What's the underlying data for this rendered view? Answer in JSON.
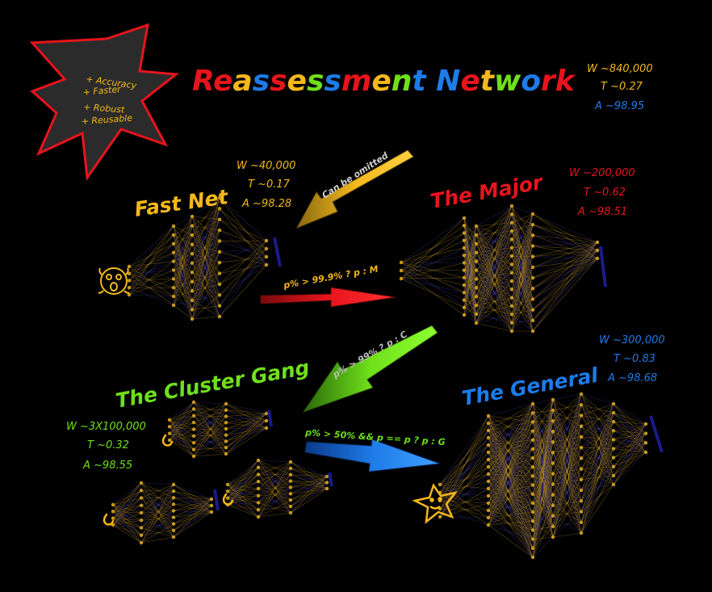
{
  "colors": {
    "background": "#000000",
    "yellow": "#f4b81c",
    "red": "#e8141c",
    "green": "#6fe01a",
    "blue": "#1e7be8",
    "network_node": "#c89a1a",
    "network_edge_a": "#d4a42a",
    "network_edge_b": "#4c42b0",
    "output_bar": "#1a1a8c",
    "star_fill": "#2b2b2b",
    "star_stroke": "#e8141c"
  },
  "title": {
    "text": "Reassessment Network",
    "letter_colors": [
      "#e8141c",
      "#e8141c",
      "#f4b81c",
      "#1e7be8",
      "#e8141c",
      "#f4b81c",
      "#6fe01a",
      "#1e7be8",
      "#e8141c",
      "#f4b81c",
      "#6fe01a",
      "#1e7be8",
      "#000000",
      "#1e7be8",
      "#e8141c",
      "#f4b81c",
      "#6fe01a",
      "#1e7be8",
      "#e8141c",
      "#e8141c"
    ]
  },
  "star_badge": {
    "items": [
      "+ Accuracy",
      "+ Faster",
      "+ Robust",
      "+ Reusable"
    ]
  },
  "overall_stats": {
    "w": "W ~840,000",
    "t": "T ~0.27",
    "a": "A ~98.95"
  },
  "fast_net": {
    "name": "Fast Net",
    "w": "W ~40,000",
    "t": "T ~0.17",
    "a": "A ~98.28",
    "icon": "scared-face-icon"
  },
  "the_major": {
    "name": "The Major",
    "w": "W ~200,000",
    "t": "T ~0.62",
    "a": "A ~98.51"
  },
  "cluster_gang": {
    "name": "The Cluster Gang",
    "w": "W ~3X100,000",
    "t": "T ~0.32",
    "a": "A ~98.55",
    "icon": "flexed-arm-icon"
  },
  "the_general": {
    "name": "The General",
    "w": "W ~300,000",
    "t": "T ~0.83",
    "a": "A ~98.68",
    "icon": "smiling-star-icon"
  },
  "arrows": {
    "omit_label": "Can be omitted",
    "to_major_cond": "p% > 99.9% ? p : M",
    "to_cluster_cond": "p% > 99% ? p : C",
    "to_general_cond": "p% > 50% && p == p ? p : G"
  }
}
